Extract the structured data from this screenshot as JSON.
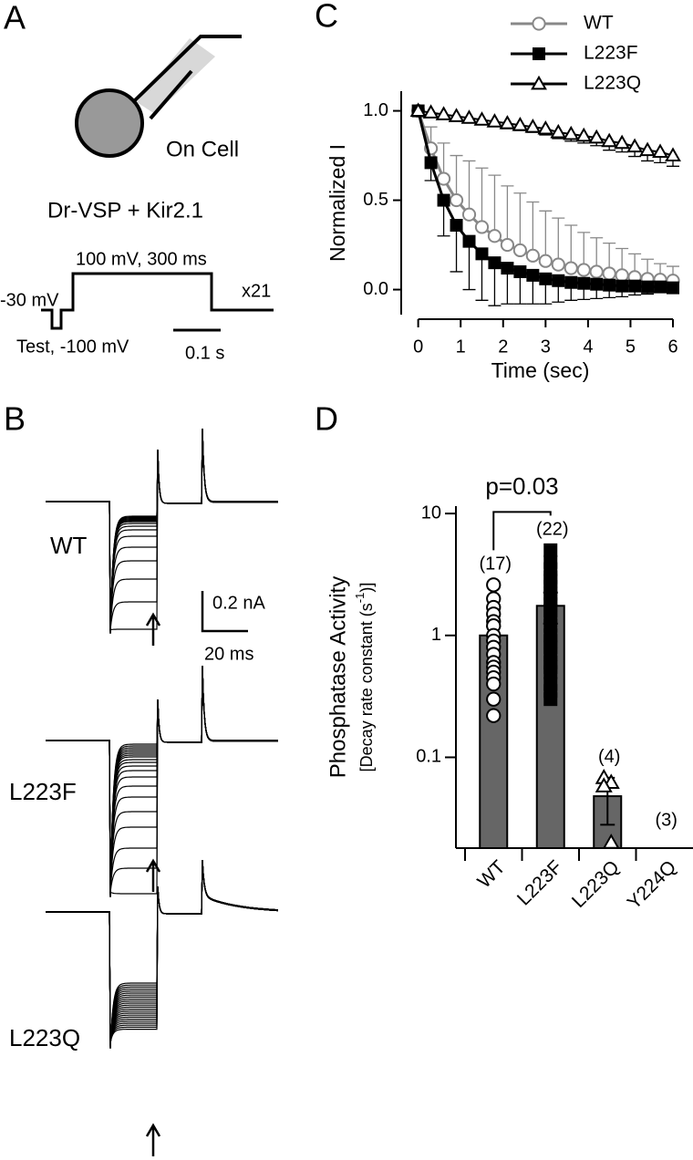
{
  "panel_labels": [
    "A",
    "B",
    "C",
    "D"
  ],
  "diagram": {
    "cell_label": "On Cell",
    "construct": "Dr-VSP + Kir2.1",
    "pulse_label": "100 mV, 300 ms",
    "holding_label": "-30 mV",
    "repeat_label": "x21",
    "test_label": "Test, -100 mV",
    "scale_label": "0.1 s"
  },
  "traces": {
    "groups": [
      "WT",
      "L223F",
      "L223Q"
    ],
    "current_scale": "0.2 nA",
    "time_scale": "20 ms"
  },
  "chart_data": [
    {
      "type": "line",
      "xlabel": "Time (sec)",
      "ylabel": "Normalized I",
      "x": [
        0,
        0.3,
        0.6,
        0.9,
        1.2,
        1.5,
        1.8,
        2.1,
        2.4,
        2.7,
        3,
        3.3,
        3.6,
        3.9,
        4.2,
        4.5,
        4.8,
        5.1,
        5.4,
        5.7,
        6
      ],
      "series": [
        {
          "name": "WT",
          "color": "#888888",
          "marker": "circle",
          "fill": "#ffffff",
          "error_side": "up",
          "values": [
            1.0,
            0.79,
            0.62,
            0.5,
            0.42,
            0.35,
            0.3,
            0.25,
            0.22,
            0.19,
            0.16,
            0.14,
            0.12,
            0.11,
            0.1,
            0.09,
            0.08,
            0.07,
            0.06,
            0.055,
            0.05
          ],
          "errors": [
            0,
            0.12,
            0.2,
            0.25,
            0.3,
            0.33,
            0.34,
            0.33,
            0.32,
            0.3,
            0.28,
            0.26,
            0.24,
            0.21,
            0.19,
            0.17,
            0.15,
            0.13,
            0.11,
            0.09,
            0.08
          ]
        },
        {
          "name": "L223F",
          "color": "#000000",
          "marker": "square",
          "fill": "#000000",
          "error_side": "down",
          "values": [
            1.0,
            0.71,
            0.5,
            0.36,
            0.27,
            0.2,
            0.15,
            0.12,
            0.1,
            0.08,
            0.06,
            0.05,
            0.04,
            0.035,
            0.03,
            0.025,
            0.02,
            0.02,
            0.015,
            0.015,
            0.01
          ],
          "errors": [
            0,
            0.1,
            0.2,
            0.26,
            0.27,
            0.26,
            0.24,
            0.2,
            0.18,
            0.16,
            0.14,
            0.12,
            0.1,
            0.09,
            0.08,
            0.07,
            0.06,
            0.05,
            0.04,
            0.03,
            0.03
          ]
        },
        {
          "name": "L223Q",
          "color": "#000000",
          "marker": "triangle",
          "fill": "#ffffff",
          "error_side": "down",
          "values": [
            1.0,
            0.99,
            0.98,
            0.97,
            0.96,
            0.95,
            0.94,
            0.93,
            0.92,
            0.91,
            0.9,
            0.88,
            0.87,
            0.86,
            0.85,
            0.83,
            0.82,
            0.8,
            0.78,
            0.77,
            0.75
          ],
          "errors": [
            0,
            0.01,
            0.015,
            0.02,
            0.02,
            0.025,
            0.025,
            0.03,
            0.03,
            0.03,
            0.035,
            0.035,
            0.04,
            0.04,
            0.045,
            0.05,
            0.05,
            0.055,
            0.06,
            0.06,
            0.06
          ]
        }
      ],
      "xlim": [
        -0.4,
        6.15
      ],
      "ylim": [
        -0.14,
        1.11
      ],
      "xticks": [
        0,
        1,
        2,
        3,
        4,
        5,
        6
      ],
      "yticks": [
        {
          "value": 0,
          "label": "0.0"
        },
        {
          "value": 0.5,
          "label": "0.5"
        },
        {
          "value": 1,
          "label": "1.0"
        }
      ],
      "legend": "top-right"
    },
    {
      "type": "bar",
      "log_scale": true,
      "color": "#666666",
      "ylabel": "Phosphatase Activity",
      "ylabel_sub": [
        "[Decay rate constant (s",
        "-1",
        ")]"
      ],
      "categories": [
        "WT",
        "L223F",
        "L223Q",
        "Y224Q"
      ],
      "values": [
        1.0,
        1.75,
        0.048,
        null
      ],
      "errors": [
        0.18,
        0.5,
        0.02,
        null
      ],
      "n_labels": [
        "(17)",
        "(22)",
        "(4)",
        "(3)"
      ],
      "points": [
        [
          2.6,
          2.0,
          1.7,
          1.5,
          1.3,
          1.2,
          1.0,
          0.9,
          0.8,
          0.7,
          0.6,
          0.55,
          0.5,
          0.45,
          0.4,
          0.3,
          0.22
        ],
        [
          5.0,
          4.0,
          3.5,
          3.0,
          2.8,
          2.5,
          2.2,
          2.0,
          1.8,
          1.6,
          1.4,
          1.2,
          1.0,
          0.9,
          0.8,
          0.7,
          0.6,
          0.55,
          0.5,
          0.4,
          0.35,
          0.3
        ],
        [
          0.068,
          0.062,
          0.058,
          0.02
        ],
        []
      ],
      "point_styles": [
        {
          "marker": "circle",
          "fill": "#ffffff"
        },
        {
          "marker": "square",
          "fill": "#000000"
        },
        {
          "marker": "triangle",
          "fill": "#ffffff"
        },
        null
      ],
      "annotation": {
        "text": "p=0.03",
        "between": [
          0,
          1
        ]
      },
      "ylim": [
        0.018,
        11.5
      ],
      "yticks": [
        0.1,
        1,
        10
      ]
    }
  ]
}
